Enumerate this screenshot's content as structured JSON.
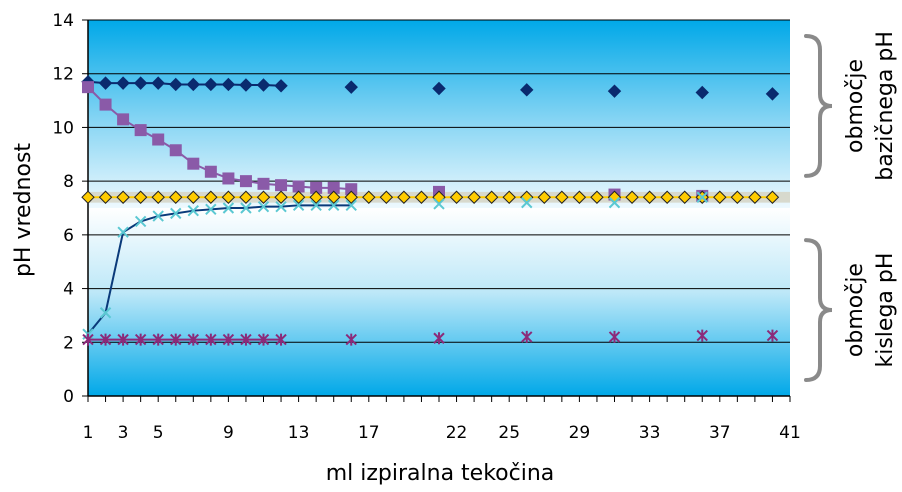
{
  "chart_data": {
    "type": "line",
    "xlabel": "ml izpiralna tekočina",
    "ylabel": "pH vrednost",
    "ylim": [
      0,
      14
    ],
    "xlim": [
      1,
      41
    ],
    "x_ticks": [
      "1",
      "3",
      "5",
      "9",
      "13",
      "17",
      "22",
      "25",
      "29",
      "33",
      "37",
      "41"
    ],
    "y_ticks": [
      "0",
      "2",
      "4",
      "6",
      "8",
      "10",
      "12",
      "14"
    ],
    "grid": true,
    "legend": "none",
    "neutral_band": [
      7.2,
      7.6
    ],
    "series": [
      {
        "marker": "diamond",
        "color": "#0a2a6e",
        "line": true,
        "x": [
          1,
          2,
          3,
          4,
          5,
          6,
          7,
          8,
          9,
          10,
          11,
          12,
          16,
          21,
          26,
          31,
          36,
          40
        ],
        "y": [
          11.7,
          11.65,
          11.65,
          11.65,
          11.65,
          11.6,
          11.6,
          11.6,
          11.6,
          11.58,
          11.58,
          11.55,
          11.5,
          11.45,
          11.4,
          11.35,
          11.3,
          11.25
        ]
      },
      {
        "marker": "square",
        "color": "#8a5aa8",
        "line": true,
        "x": [
          1,
          2,
          3,
          4,
          5,
          6,
          7,
          8,
          9,
          10,
          11,
          12,
          13,
          14,
          15,
          16,
          21,
          31,
          36
        ],
        "y": [
          11.5,
          10.85,
          10.3,
          9.9,
          9.55,
          9.15,
          8.65,
          8.35,
          8.1,
          8.0,
          7.9,
          7.85,
          7.8,
          7.75,
          7.75,
          7.7,
          7.6,
          7.5,
          7.45
        ]
      },
      {
        "marker": "diamond",
        "color": "#ffcc00",
        "line": true,
        "x": [
          1,
          2,
          3,
          4,
          5,
          6,
          7,
          8,
          9,
          10,
          11,
          12,
          13,
          14,
          15,
          16,
          17,
          18,
          19,
          20,
          21,
          22,
          23,
          24,
          25,
          26,
          27,
          28,
          29,
          30,
          31,
          32,
          33,
          34,
          35,
          36,
          37,
          38,
          39,
          40
        ],
        "y": [
          7.4,
          7.4,
          7.4,
          7.4,
          7.4,
          7.4,
          7.4,
          7.4,
          7.4,
          7.4,
          7.4,
          7.4,
          7.4,
          7.4,
          7.4,
          7.4,
          7.4,
          7.4,
          7.4,
          7.4,
          7.4,
          7.4,
          7.4,
          7.4,
          7.4,
          7.4,
          7.4,
          7.4,
          7.4,
          7.4,
          7.4,
          7.4,
          7.4,
          7.4,
          7.4,
          7.4,
          7.4,
          7.4,
          7.4,
          7.4
        ]
      },
      {
        "marker": "x",
        "color": "#5bc8d2",
        "line": true,
        "x": [
          1,
          2,
          3,
          4,
          5,
          6,
          7,
          8,
          9,
          10,
          11,
          12,
          13,
          14,
          15,
          16,
          21,
          26,
          31,
          36
        ],
        "y": [
          2.3,
          3.1,
          6.1,
          6.5,
          6.7,
          6.8,
          6.9,
          6.95,
          7.0,
          7.0,
          7.05,
          7.05,
          7.1,
          7.1,
          7.1,
          7.1,
          7.15,
          7.2,
          7.2,
          7.4
        ]
      },
      {
        "marker": "asterisk",
        "color": "#8b2a7a",
        "line": true,
        "x": [
          1,
          2,
          3,
          4,
          5,
          6,
          7,
          8,
          9,
          10,
          11,
          12,
          16,
          21,
          26,
          31,
          36,
          40
        ],
        "y": [
          2.1,
          2.1,
          2.1,
          2.1,
          2.1,
          2.1,
          2.1,
          2.1,
          2.1,
          2.1,
          2.1,
          2.1,
          2.1,
          2.15,
          2.2,
          2.2,
          2.25,
          2.25
        ]
      }
    ],
    "annotations": [
      {
        "lines": [
          "območje",
          "bazičnega pH"
        ],
        "range": [
          7.6,
          14
        ]
      },
      {
        "lines": [
          "območje",
          "kislega pH"
        ],
        "range": [
          0,
          6.4
        ]
      }
    ]
  }
}
